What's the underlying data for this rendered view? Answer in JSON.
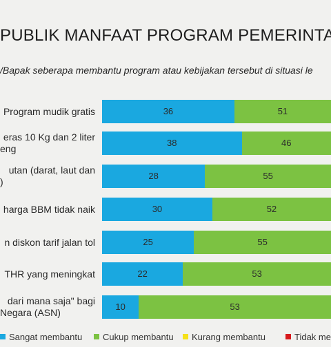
{
  "chart_data": {
    "type": "bar",
    "orientation": "horizontal",
    "stacked": true,
    "title": "PUBLIK MANFAAT PROGRAM PEMERINTAH SAA",
    "subtitle": "/Bapak seberapa membantu program atau kebijakan tersebut di situasi le",
    "categories": [
      [
        "Program mudik gratis"
      ],
      [
        "eras 10 Kg dan 2 liter",
        "eng"
      ],
      [
        "utan (darat, laut dan",
        ")"
      ],
      [
        "harga BBM tidak naik"
      ],
      [
        "n diskon tarif jalan tol"
      ],
      [
        "THR yang meningkat"
      ],
      [
        "dari mana saja\" bagi",
        "Negara (ASN)"
      ]
    ],
    "series": [
      {
        "name": "Sangat membantu",
        "color": "#1aa8e0",
        "values": [
          36,
          38,
          28,
          30,
          25,
          22,
          10
        ]
      },
      {
        "name": "Cukup membantu",
        "color": "#7cc242",
        "values": [
          51,
          46,
          55,
          52,
          55,
          53,
          53
        ]
      },
      {
        "name": "Kurang membantu",
        "color": "#f5e11a",
        "values": [
          null,
          null,
          null,
          null,
          null,
          null,
          null
        ]
      },
      {
        "name": "Tidak me",
        "color": "#d7191c",
        "values": [
          null,
          null,
          null,
          null,
          null,
          null,
          null
        ]
      }
    ],
    "legend_labels": [
      "Sangat membantu",
      "Cukup membantu",
      "Kurang membantu",
      "Tidak me"
    ],
    "legend_position": "bottom",
    "grid": false
  }
}
